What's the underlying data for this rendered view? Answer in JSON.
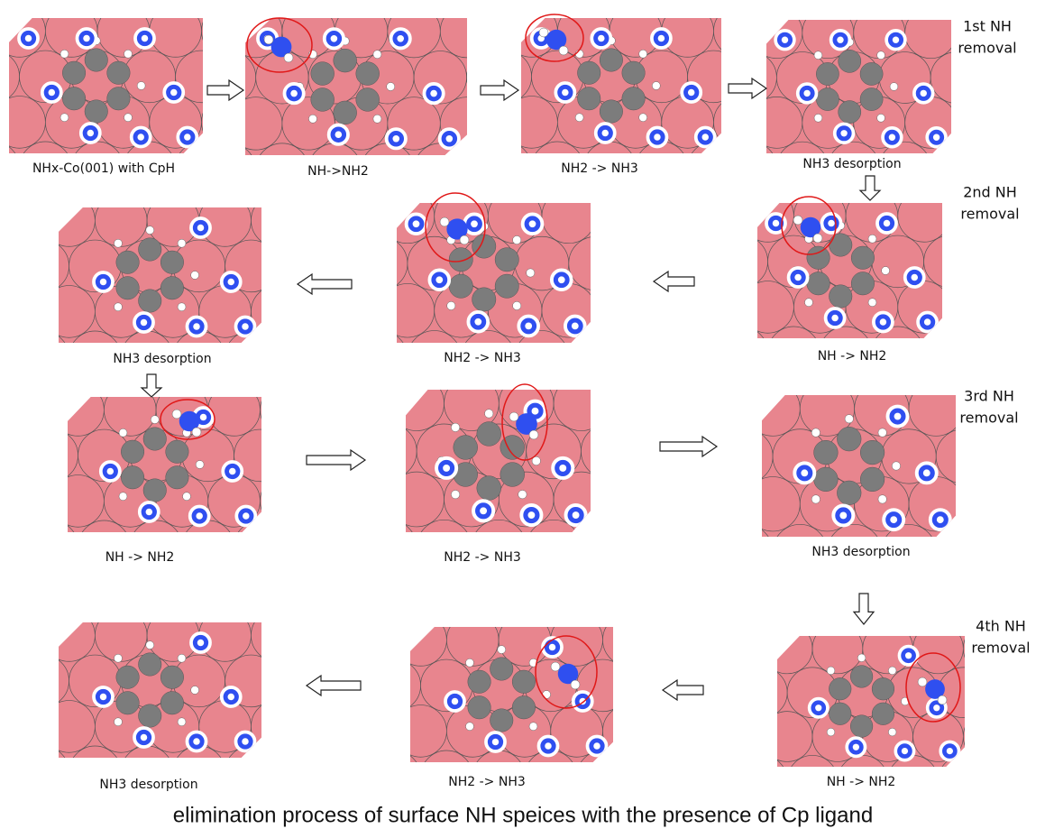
{
  "panels": [
    {
      "label": "NHx-Co(001) with CpH"
    },
    {
      "label": "NH->NH2"
    },
    {
      "label": "NH2 -> NH3"
    },
    {
      "label": "NH3 desorption"
    },
    {
      "label": "NH -> NH2"
    },
    {
      "label": "NH2 -> NH3"
    },
    {
      "label": "NH3 desorption"
    },
    {
      "label": "NH -> NH2"
    },
    {
      "label": "NH2 -> NH3"
    },
    {
      "label": "NH3 desorption"
    },
    {
      "label": "NH -> NH2"
    },
    {
      "label": "NH2 -> NH3"
    },
    {
      "label": "NH3 desorption"
    }
  ],
  "stages": [
    {
      "lines": [
        "1st NH",
        "removal"
      ]
    },
    {
      "lines": [
        "2nd NH",
        "removal"
      ]
    },
    {
      "lines": [
        "3rd NH",
        "removal"
      ]
    },
    {
      "lines": [
        "4th NH",
        "removal"
      ]
    }
  ],
  "caption": "elimination process of surface NH speices with the presence of Cp ligand"
}
